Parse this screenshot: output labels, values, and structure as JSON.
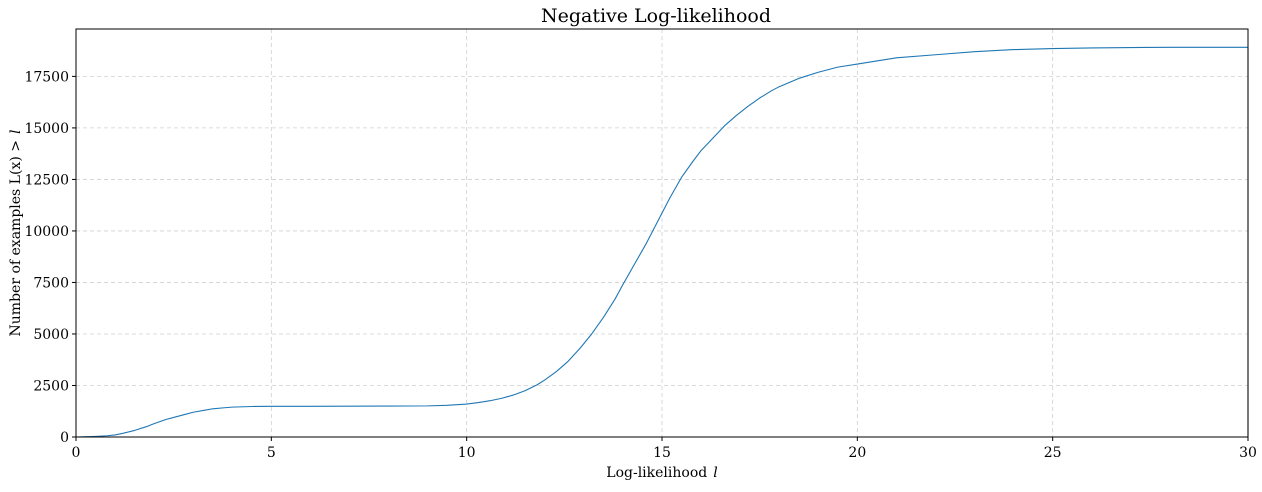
{
  "chart_data": {
    "type": "line",
    "title": "Negative Log-likelihood",
    "xlabel": "Log-likelihood",
    "xlabel_var": "l",
    "ylabel": "Number of examples L(x) >",
    "ylabel_var": "l",
    "xlim": [
      0,
      30
    ],
    "ylim": [
      0,
      19800
    ],
    "xticks": [
      0,
      5,
      10,
      15,
      20,
      25,
      30
    ],
    "yticks": [
      0,
      2500,
      5000,
      7500,
      10000,
      12500,
      15000,
      17500
    ],
    "grid": true,
    "grid_style": "dashed",
    "legend": "none",
    "colors": {
      "line": "#1f77b4",
      "grid": "#d0d0d0",
      "axis": "#000000"
    },
    "series": [
      {
        "x": [
          0,
          0.5,
          0.8,
          1.0,
          1.2,
          1.5,
          1.8,
          2.0,
          2.3,
          2.5,
          2.8,
          3.0,
          3.3,
          3.5,
          3.8,
          4.0,
          4.5,
          5.0,
          6.0,
          7.0,
          8.0,
          9.0,
          9.5,
          10.0,
          10.3,
          10.6,
          10.9,
          11.2,
          11.5,
          11.8,
          12.0,
          12.3,
          12.6,
          12.9,
          13.2,
          13.5,
          13.8,
          14.0,
          14.3,
          14.6,
          14.9,
          15.2,
          15.5,
          15.8,
          16.0,
          16.3,
          16.6,
          16.9,
          17.2,
          17.5,
          17.8,
          18.0,
          18.5,
          19.0,
          19.5,
          20.0,
          20.5,
          21.0,
          22.0,
          23.0,
          24.0,
          25.0,
          26.0,
          27.0,
          28.0,
          29.0,
          29.98,
          30.0,
          30.0
        ],
        "y": [
          0,
          30,
          60,
          100,
          180,
          320,
          500,
          650,
          850,
          950,
          1100,
          1200,
          1300,
          1370,
          1420,
          1450,
          1480,
          1490,
          1490,
          1495,
          1500,
          1510,
          1540,
          1600,
          1670,
          1760,
          1880,
          2040,
          2250,
          2530,
          2770,
          3180,
          3680,
          4300,
          5000,
          5800,
          6700,
          7400,
          8400,
          9400,
          10500,
          11600,
          12600,
          13400,
          13900,
          14500,
          15100,
          15600,
          16050,
          16450,
          16800,
          17000,
          17400,
          17700,
          17950,
          18100,
          18250,
          18400,
          18550,
          18700,
          18800,
          18850,
          18880,
          18900,
          18910,
          18910,
          18910,
          18910,
          0
        ]
      }
    ]
  }
}
